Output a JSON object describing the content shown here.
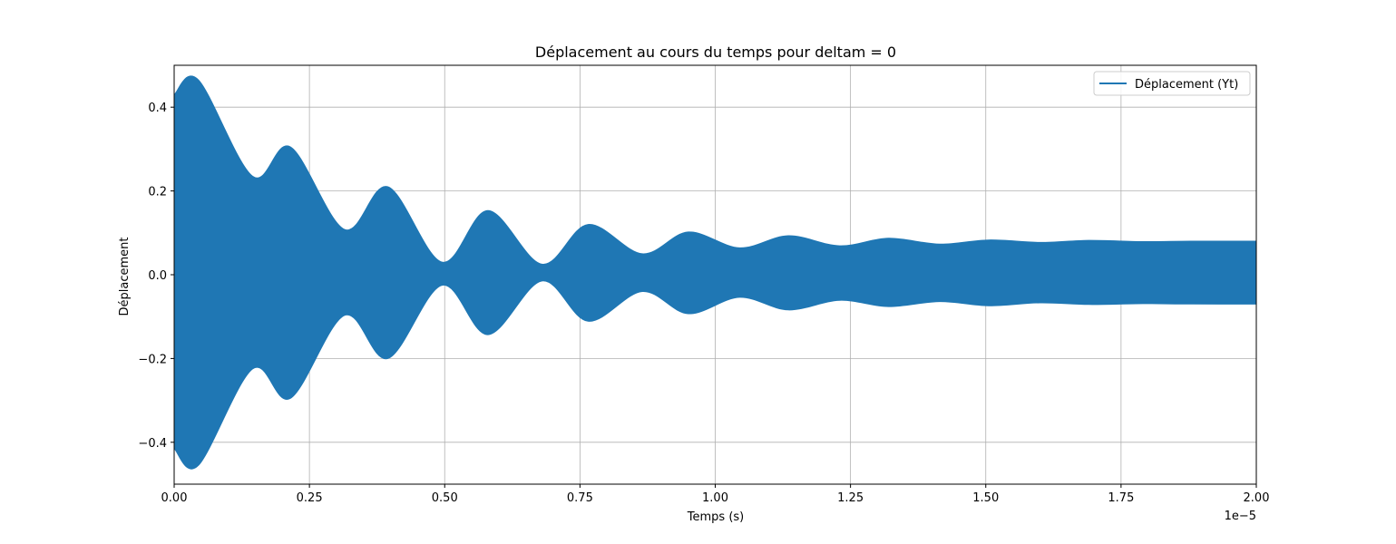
{
  "chart_data": {
    "type": "area",
    "title": "Déplacement au cours du temps pour deltam = 0",
    "xlabel": "Temps (s)",
    "ylabel": "Déplacement",
    "x_offset_text": "1e−5",
    "xlim": [
      0,
      2.0
    ],
    "ylim": [
      -0.5,
      0.5
    ],
    "x_ticks": [
      0,
      0.25,
      0.5,
      0.75,
      1.0,
      1.25,
      1.5,
      1.75,
      2.0
    ],
    "x_tick_labels": [
      "0.00",
      "0.25",
      "0.50",
      "0.75",
      "1.00",
      "1.25",
      "1.50",
      "1.75",
      "2.00"
    ],
    "y_ticks": [
      -0.4,
      -0.2,
      0.0,
      0.2,
      0.4
    ],
    "y_tick_labels": [
      "−0.4",
      "−0.2",
      "0.0",
      "0.2",
      "0.4"
    ],
    "grid": true,
    "legend_position": "top-right",
    "series": [
      {
        "name": "Déplacement (Yt)",
        "color": "#1f77b4",
        "x": [
          0.0,
          0.045,
          0.145,
          0.215,
          0.315,
          0.395,
          0.495,
          0.58,
          0.68,
          0.765,
          0.865,
          0.95,
          1.045,
          1.135,
          1.23,
          1.32,
          1.415,
          1.505,
          1.6,
          1.69,
          1.79,
          1.88,
          2.0
        ],
        "upper": [
          0.43,
          0.465,
          0.235,
          0.305,
          0.108,
          0.21,
          0.03,
          0.153,
          0.025,
          0.12,
          0.05,
          0.102,
          0.064,
          0.093,
          0.069,
          0.087,
          0.073,
          0.083,
          0.077,
          0.082,
          0.079,
          0.08,
          0.08
        ],
        "lower": [
          -0.415,
          -0.455,
          -0.225,
          -0.295,
          -0.097,
          -0.2,
          -0.025,
          -0.143,
          -0.015,
          -0.111,
          -0.04,
          -0.093,
          -0.054,
          -0.084,
          -0.061,
          -0.076,
          -0.064,
          -0.074,
          -0.067,
          -0.071,
          -0.069,
          -0.07,
          -0.07
        ]
      }
    ]
  }
}
